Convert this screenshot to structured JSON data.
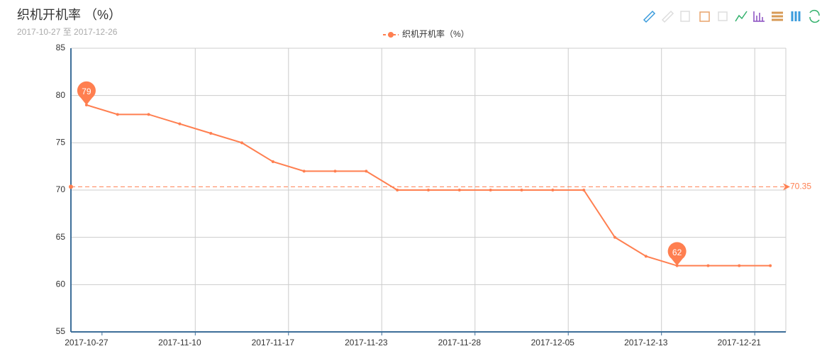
{
  "chart_data": {
    "type": "line",
    "title": "织机开机率 （%）",
    "subtitle": "2017-10-27 至 2017-12-26",
    "categories": [
      "2017-10-27",
      null,
      null,
      "2017-11-10",
      null,
      null,
      "2017-11-17",
      null,
      null,
      "2017-11-23",
      null,
      null,
      "2017-11-28",
      null,
      null,
      "2017-12-05",
      null,
      null,
      "2017-12-13",
      null,
      null,
      "2017-12-21",
      null
    ],
    "series": [
      {
        "name": "织机开机率（%）",
        "color": "#ff7f50",
        "values": [
          79,
          78,
          78,
          77,
          76,
          75,
          73,
          72,
          72,
          72,
          70,
          70,
          70,
          70,
          70,
          70,
          70,
          65,
          63,
          62,
          62,
          62,
          62
        ]
      }
    ],
    "average": 70.35,
    "ylim": [
      55,
      85
    ],
    "yticks": [
      55,
      60,
      65,
      70,
      75,
      80,
      85
    ],
    "grid": true
  }
}
